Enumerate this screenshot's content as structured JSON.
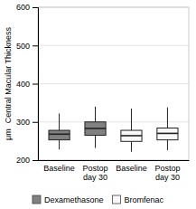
{
  "chart_data": {
    "type": "box",
    "ylabel": [
      "Central Macular Thickness",
      "μm"
    ],
    "categories": [
      "Baseline",
      "Postop\nday 30",
      "Baseline",
      "Postop\nday 30"
    ],
    "series": [
      {
        "name": "Dexamethasone",
        "color": "#808080",
        "values": [
          {
            "whisker_low": 228,
            "q1": 253,
            "median": 268,
            "q3": 278,
            "whisker_high": 322
          },
          {
            "whisker_low": 232,
            "q1": 265,
            "median": 283,
            "q3": 300,
            "whisker_high": 340
          },
          null,
          null
        ]
      },
      {
        "name": "Bromfenac",
        "color": "#f8f8f8",
        "values": [
          null,
          null,
          {
            "whisker_low": 222,
            "q1": 249,
            "median": 264,
            "q3": 278,
            "whisker_high": 335
          },
          {
            "whisker_low": 226,
            "q1": 253,
            "median": 270,
            "q3": 284,
            "whisker_high": 338
          }
        ]
      }
    ],
    "ylim": [
      200,
      600
    ],
    "yticks": [
      200,
      300,
      400,
      500,
      600
    ],
    "grid": true,
    "legend": "bottom"
  }
}
